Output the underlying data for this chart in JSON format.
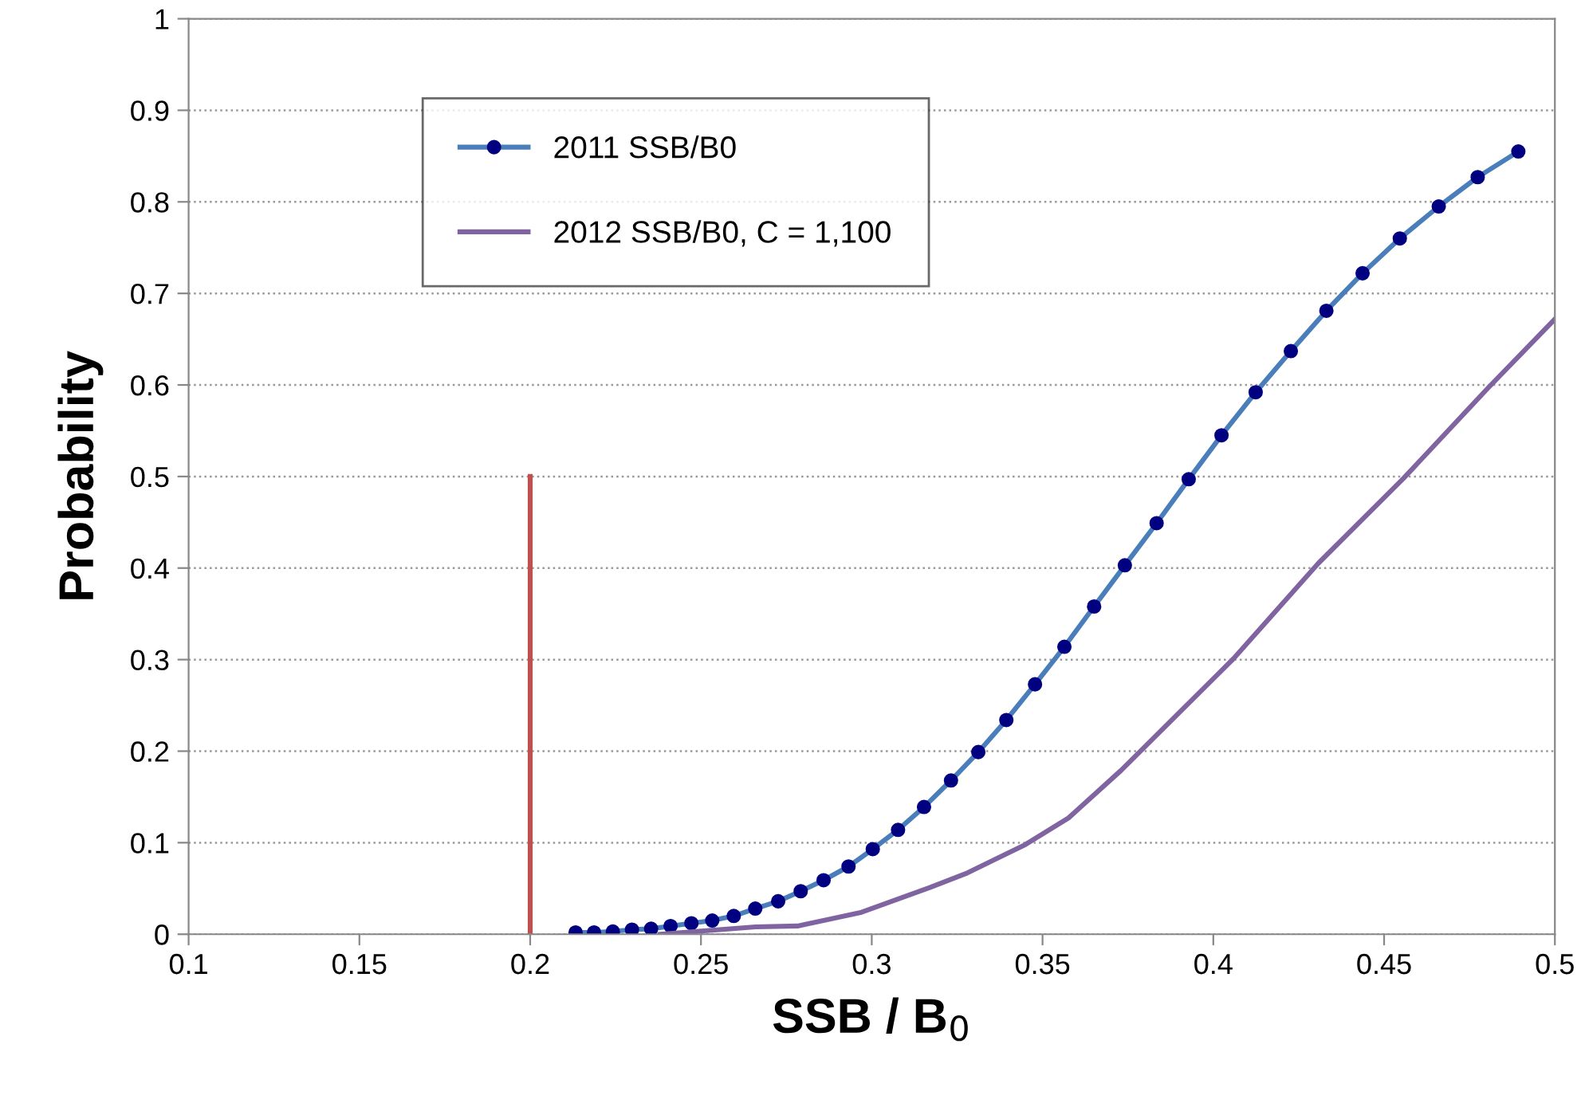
{
  "chart_data": {
    "type": "line",
    "xlabel": "SSB / B$_{0}$",
    "ylabel": "Probability",
    "series": [
      {
        "name": "2011 SSB/B0",
        "color": "#4a7ebb",
        "marker": "circle",
        "x": [
          0.2133,
          0.2187,
          0.2242,
          0.2298,
          0.2354,
          0.2411,
          0.2472,
          0.2533,
          0.2596,
          0.2659,
          0.2726,
          0.2792,
          0.2859,
          0.2932,
          0.3003,
          0.3077,
          0.3153,
          0.3232,
          0.3312,
          0.3394,
          0.3478,
          0.3564,
          0.3651,
          0.3741,
          0.3834,
          0.3928,
          0.4024,
          0.4124,
          0.4227,
          0.4331,
          0.4437,
          0.4546,
          0.466,
          0.4774,
          0.4893
        ],
        "values": [
          0.002,
          0.002,
          0.003,
          0.005,
          0.006,
          0.009,
          0.012,
          0.015,
          0.02,
          0.028,
          0.036,
          0.047,
          0.059,
          0.074,
          0.093,
          0.114,
          0.139,
          0.168,
          0.199,
          0.234,
          0.273,
          0.314,
          0.358,
          0.403,
          0.449,
          0.497,
          0.545,
          0.592,
          0.637,
          0.681,
          0.722,
          0.76,
          0.795,
          0.827,
          0.855
        ]
      },
      {
        "name": "2012 SSB/B0, C = 1,100",
        "color": "#8064a2",
        "marker": "none",
        "x": [
          0.238,
          0.266,
          0.2783,
          0.297,
          0.317,
          0.328,
          0.345,
          0.3576,
          0.373,
          0.4059,
          0.4307,
          0.4557,
          0.4805,
          0.5
        ],
        "values": [
          0.0,
          0.008,
          0.009,
          0.024,
          0.051,
          0.067,
          0.098,
          0.127,
          0.179,
          0.301,
          0.405,
          0.498,
          0.597,
          0.672
        ]
      },
      {
        "color": "#c0504d",
        "marker": "none",
        "x": [
          0.2,
          0.2
        ],
        "values": [
          0,
          0.5
        ]
      }
    ],
    "xlim": [
      0.1,
      0.5
    ],
    "xticks": [
      0.1,
      0.15,
      0.2,
      0.25,
      0.3,
      0.35,
      0.4,
      0.45,
      0.5
    ],
    "ylim": [
      0,
      1
    ],
    "yticks": [
      0,
      0.1,
      0.2,
      0.3,
      0.4,
      0.5,
      0.6,
      0.7,
      0.8,
      0.9,
      1
    ],
    "grid": "y",
    "legend": "top left"
  }
}
